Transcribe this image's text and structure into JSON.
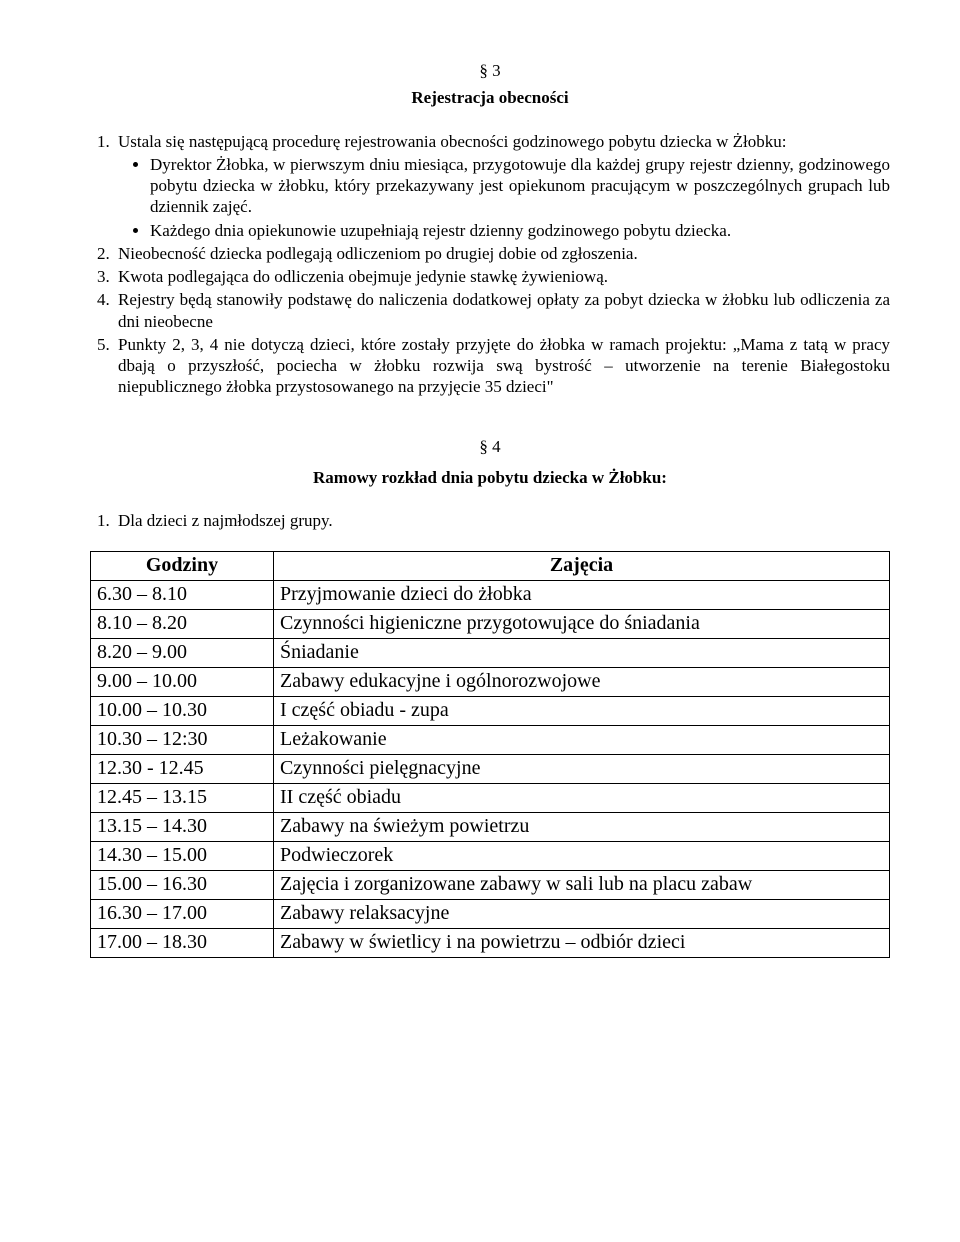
{
  "section3": {
    "number": "§ 3",
    "title": "Rejestracja obecności",
    "list": {
      "item1_lead": "Ustala się następującą procedurę rejestrowania obecności godzinowego pobytu dziecka w Żłobku:",
      "item1_bullets": [
        "Dyrektor Żłobka, w pierwszym dniu miesiąca, przygotowuje dla każdej grupy rejestr dzienny, godzinowego pobytu dziecka w żłobku, który przekazywany jest opiekunom pracującym w poszczególnych grupach lub dziennik zajęć.",
        "Każdego dnia opiekunowie uzupełniają rejestr dzienny godzinowego pobytu dziecka."
      ],
      "item2": "Nieobecność dziecka podlegają odliczeniom po drugiej dobie od zgłoszenia.",
      "item3": "Kwota podlegająca do odliczenia obejmuje jedynie stawkę żywieniową.",
      "item4": "Rejestry będą stanowiły podstawę do naliczenia dodatkowej opłaty za pobyt dziecka w żłobku lub odliczenia za dni nieobecne",
      "item5": "Punkty 2, 3, 4 nie dotyczą dzieci, które zostały przyjęte do żłobka w ramach projektu: „Mama z tatą w pracy dbają o przyszłość, pociecha w żłobku rozwija swą bystrość – utworzenie na terenie Białegostoku niepublicznego żłobka przystosowanego na przyjęcie 35 dzieci\""
    }
  },
  "section4": {
    "number": "§ 4",
    "title": "Ramowy rozkład dnia pobytu dziecka w Żłobku:",
    "intro": "Dla dzieci z najmłodszej grupy.",
    "table": {
      "headers": {
        "time": "Godziny",
        "activity": "Zajęcia"
      },
      "rows": [
        {
          "time": "6.30 – 8.10",
          "activity": "Przyjmowanie dzieci do żłobka"
        },
        {
          "time": "8.10 – 8.20",
          "activity": "Czynności higieniczne przygotowujące do śniadania"
        },
        {
          "time": "8.20 – 9.00",
          "activity": "Śniadanie"
        },
        {
          "time": "9.00 – 10.00",
          "activity": "Zabawy edukacyjne i ogólnorozwojowe"
        },
        {
          "time": "10.00 – 10.30",
          "activity": "I część obiadu - zupa"
        },
        {
          "time": "10.30 – 12:30",
          "activity": "Leżakowanie"
        },
        {
          "time": "12.30 - 12.45",
          "activity": "Czynności pielęgnacyjne"
        },
        {
          "time": "12.45 – 13.15",
          "activity": "II część obiadu"
        },
        {
          "time": "13.15 – 14.30",
          "activity": "Zabawy na świeżym powietrzu"
        },
        {
          "time": "14.30 – 15.00",
          "activity": "Podwieczorek"
        },
        {
          "time": "15.00 – 16.30",
          "activity": "Zajęcia i zorganizowane zabawy w sali lub na placu zabaw"
        },
        {
          "time": "16.30 – 17.00",
          "activity": "Zabawy relaksacyjne"
        },
        {
          "time": "17.00 – 18.30",
          "activity": "Zabawy w świetlicy i na powietrzu – odbiór dzieci"
        }
      ]
    }
  }
}
